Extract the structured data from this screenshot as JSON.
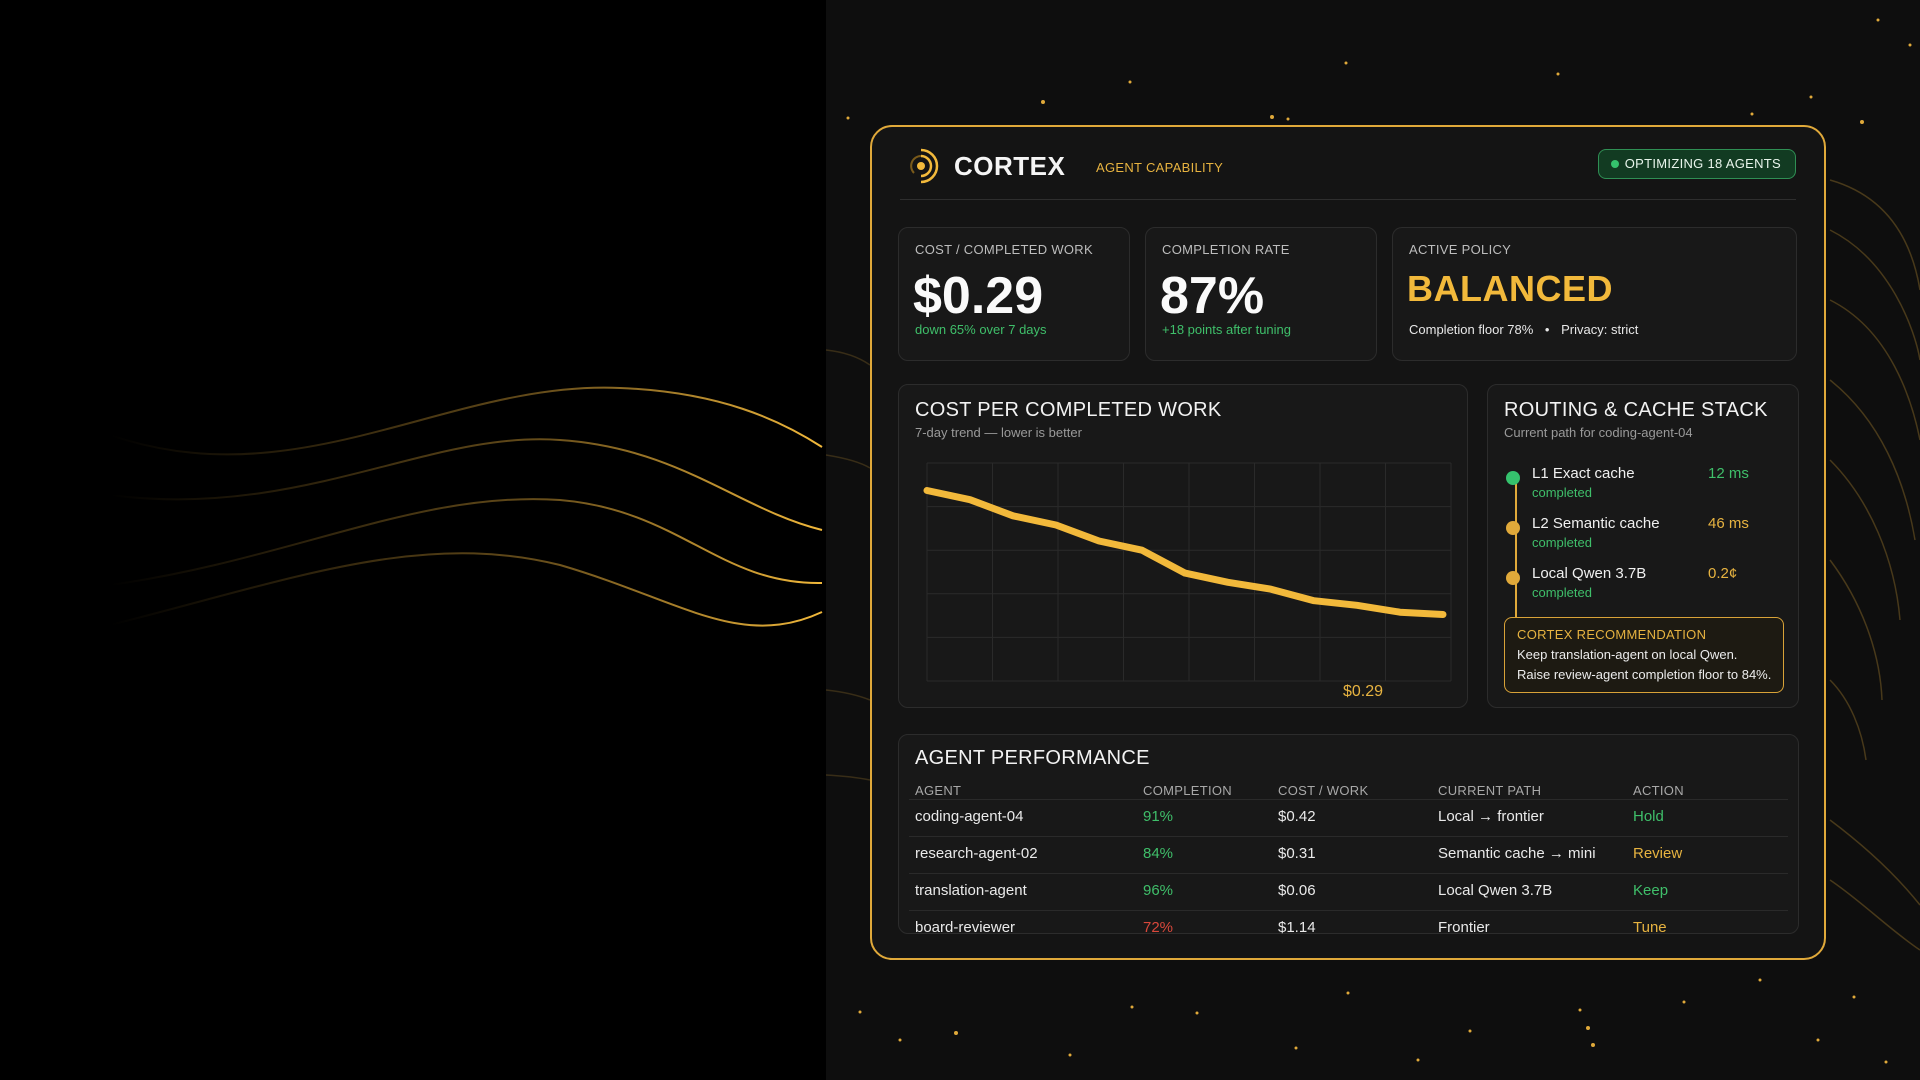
{
  "header": {
    "brand": "CORTEX",
    "brand_sub": "AGENT CAPABILITY",
    "status_badge": "OPTIMIZING 18 AGENTS",
    "logo_icon": "cortex-radar-icon"
  },
  "kpis": [
    {
      "label": "COST / COMPLETED WORK",
      "value": "$0.29",
      "sub": "down 65% over 7 days"
    },
    {
      "label": "COMPLETION RATE",
      "value": "87%",
      "sub": "+18 points after tuning"
    },
    {
      "label": "ACTIVE POLICY",
      "value": "BALANCED",
      "meta1": "Completion floor 78%",
      "separator": "•",
      "meta2": "Privacy: strict"
    }
  ],
  "cost_chart": {
    "title": "COST PER COMPLETED WORK",
    "subtitle": "7-day trend — lower is better",
    "end_label": "$0.29"
  },
  "chart_data": {
    "type": "line",
    "title": "COST PER COMPLETED WORK",
    "subtitle": "7-day trend — lower is better",
    "grid": true,
    "color": "#f2b93b",
    "series": [
      {
        "values": [
          0.83,
          0.79,
          0.72,
          0.68,
          0.61,
          0.57,
          0.47,
          0.43,
          0.4,
          0.35,
          0.33,
          0.3,
          0.29
        ]
      }
    ],
    "ylim": [
      0.0,
      0.95
    ],
    "end_annotation": "$0.29"
  },
  "routing": {
    "title": "ROUTING & CACHE STACK",
    "subtitle": "Current path for coding-agent-04",
    "steps": [
      {
        "name": "L1 Exact cache",
        "status": "completed",
        "latency": "12 ms",
        "dot_color": "#35c26d",
        "latency_color": "#3fbf6a"
      },
      {
        "name": "L2 Semantic cache",
        "status": "completed",
        "latency": "46 ms",
        "dot_color": "#e0a93a",
        "latency_color": "#e7b340"
      },
      {
        "name": "Local Qwen 3.7B",
        "status": "completed",
        "latency": "0.2¢",
        "dot_color": "#e0a93a",
        "latency_color": "#e7b340"
      }
    ],
    "recommendation": {
      "title": "CORTEX RECOMMENDATION",
      "line1": "Keep translation-agent on local Qwen.",
      "line2": "Raise review-agent completion floor to 84%."
    }
  },
  "agents": {
    "title": "AGENT PERFORMANCE",
    "columns": [
      "AGENT",
      "COMPLETION",
      "COST / WORK",
      "CURRENT PATH",
      "ACTION"
    ],
    "rows": [
      {
        "agent": "coding-agent-04",
        "completion": "91%",
        "cost": "$0.42",
        "path": "Local → frontier",
        "action": "Hold",
        "completion_class": "green",
        "action_class": "green"
      },
      {
        "agent": "research-agent-02",
        "completion": "84%",
        "cost": "$0.31",
        "path": "Semantic cache → mini",
        "action": "Review",
        "completion_class": "green",
        "action_class": "amber"
      },
      {
        "agent": "translation-agent",
        "completion": "96%",
        "cost": "$0.06",
        "path": "Local Qwen 3.7B",
        "action": "Keep",
        "completion_class": "green",
        "action_class": "green"
      },
      {
        "agent": "board-reviewer",
        "completion": "72%",
        "cost": "$1.14",
        "path": "Frontier",
        "action": "Tune",
        "completion_class": "red",
        "action_class": "amber"
      }
    ]
  }
}
